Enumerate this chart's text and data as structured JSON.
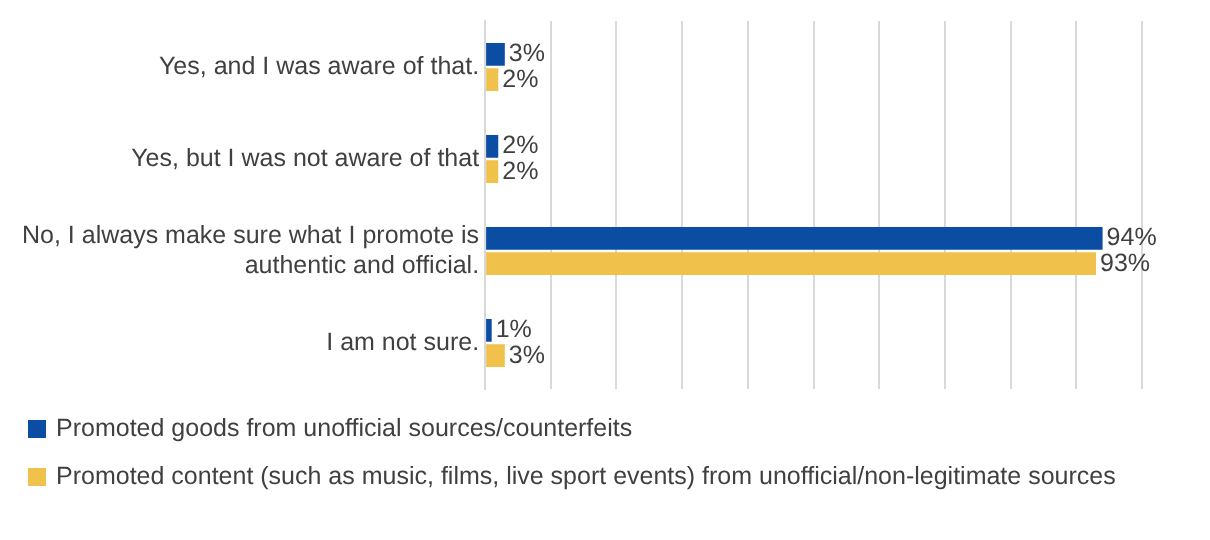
{
  "chart_data": {
    "type": "bar",
    "orientation": "horizontal",
    "categories": [
      "Yes, and I was aware of that.",
      "Yes, but I was not aware of that",
      "No, I always make sure what I promote is authentic and official.",
      "I am not sure."
    ],
    "series": [
      {
        "name": "Promoted goods from unofficial sources/counterfeits",
        "color": "#0b4da2",
        "values": [
          3,
          2,
          94,
          1
        ],
        "value_labels": [
          "3%",
          "2%",
          "94%",
          "1%"
        ]
      },
      {
        "name": "Promoted content (such as music, films, live sport events) from unofficial/non-legitimate sources",
        "color": "#f1c24b",
        "values": [
          2,
          2,
          93,
          3
        ],
        "value_labels": [
          "2%",
          "2%",
          "93%",
          "3%"
        ]
      }
    ],
    "xlim": [
      0,
      100
    ],
    "xticks": [
      {
        "value": 0,
        "label": null
      },
      {
        "value": 10,
        "label": null
      },
      {
        "value": 20,
        "label": null
      },
      {
        "value": 30,
        "label": null
      },
      {
        "value": 40,
        "label": null
      },
      {
        "value": 50,
        "label": null
      },
      {
        "value": 60,
        "label": null
      },
      {
        "value": 70,
        "label": null
      },
      {
        "value": 80,
        "label": null
      },
      {
        "value": 90,
        "label": null
      },
      {
        "value": 100,
        "label": null
      }
    ],
    "tick_labels": "y",
    "grid": "x",
    "legend": "bottom"
  }
}
